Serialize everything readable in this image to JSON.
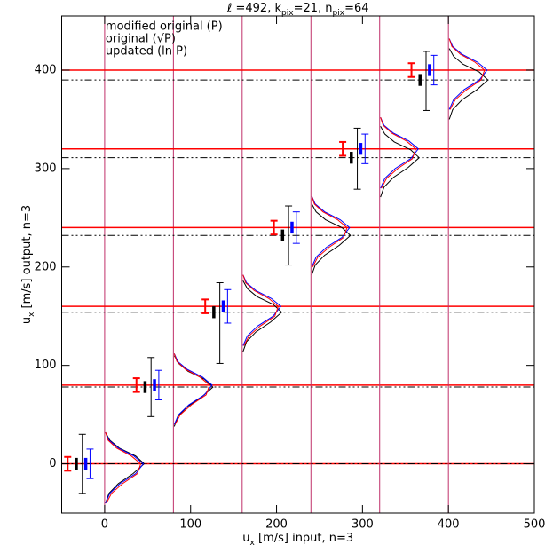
{
  "chart_data": {
    "type": "shift-test",
    "title": [
      {
        "text": "ℓ =492, k"
      },
      {
        "text": "pix",
        "sub": true
      },
      {
        "text": "=21, n"
      },
      {
        "text": "pix",
        "sub": true
      },
      {
        "text": "=64"
      }
    ],
    "x_label": [
      {
        "text": "u"
      },
      {
        "text": "x",
        "sub": true
      },
      {
        "text": " [m/s] input, n=3"
      }
    ],
    "y_label": [
      {
        "text": "u"
      },
      {
        "text": "x",
        "sub": true
      },
      {
        "text": " [m/s] output, n=3"
      }
    ],
    "legend": [
      {
        "name": "modified original (P)",
        "color": "#0000ff"
      },
      {
        "name": "original (√P)",
        "color": "#000000"
      },
      {
        "name": "updated (ln P)",
        "color": "#ff0000"
      }
    ],
    "xlim": [
      -50,
      500
    ],
    "ylim": [
      -50,
      455
    ],
    "xticks": [
      0,
      100,
      200,
      300,
      400,
      500
    ],
    "yticks": [
      0,
      100,
      200,
      300,
      400
    ],
    "inputs": [
      0,
      80,
      160,
      240,
      320,
      400
    ],
    "input_line_color": "#ff0000",
    "input_vline_color": "#c0306a",
    "black_means": [
      0,
      78,
      154,
      232,
      311,
      390
    ],
    "error_bars": [
      {
        "color": "#ff0000",
        "width": 2,
        "caps": true,
        "x": [
          -43,
          37,
          117,
          197,
          277,
          357
        ],
        "y": [
          0,
          80,
          160,
          240,
          320,
          400
        ],
        "err": [
          7,
          7,
          7,
          7,
          7,
          7
        ]
      },
      {
        "color": "#000000",
        "width": 3.5,
        "caps": false,
        "x": [
          -33,
          47,
          127,
          207,
          287,
          367
        ],
        "y": [
          0,
          78,
          154,
          232,
          311,
          390
        ],
        "err": [
          6,
          6,
          6,
          6,
          6,
          6
        ]
      },
      {
        "color": "#000000",
        "width": 1,
        "caps": true,
        "x": [
          -26,
          54,
          134,
          214,
          294,
          374
        ],
        "y": [
          0,
          78,
          143,
          232,
          310,
          389
        ],
        "err": [
          30,
          30,
          41,
          30,
          31,
          30
        ]
      },
      {
        "color": "#0000ff",
        "width": 3.5,
        "caps": false,
        "x": [
          -22,
          58,
          138,
          218,
          298,
          378
        ],
        "y": [
          0,
          80,
          160,
          240,
          320,
          400
        ],
        "err": [
          6,
          6,
          6,
          6,
          6,
          6
        ]
      },
      {
        "color": "#0000ff",
        "width": 1,
        "caps": true,
        "x": [
          -17,
          63,
          143,
          223,
          303,
          383
        ],
        "y": [
          0,
          80,
          160,
          240,
          320,
          400
        ],
        "err": [
          15,
          15,
          17,
          16,
          15,
          15
        ]
      }
    ],
    "histograms": [
      {
        "color": "#000000",
        "x": [
          1,
          5,
          16,
          33,
          46,
          36,
          17,
          6,
          1
        ],
        "y": [
          -40,
          -30,
          -20,
          -10,
          0,
          8,
          16,
          24,
          32
        ]
      },
      {
        "color": "#0000ff",
        "x": [
          1,
          6,
          18,
          36,
          45,
          34,
          16,
          5,
          1
        ],
        "y": [
          -40,
          -30,
          -20,
          -10,
          0,
          8,
          16,
          24,
          32
        ]
      },
      {
        "color": "#ff0000",
        "x": [
          2,
          8,
          21,
          38,
          42,
          31,
          14,
          4,
          1
        ],
        "y": [
          -40,
          -30,
          -20,
          -10,
          0,
          8,
          16,
          24,
          32
        ]
      },
      {
        "color": "#000000",
        "x": [
          81,
          85,
          96,
          113,
          126,
          116,
          97,
          86,
          81
        ],
        "y": [
          38,
          48,
          58,
          68,
          78,
          86,
          94,
          102,
          110
        ]
      },
      {
        "color": "#0000ff",
        "x": [
          81,
          86,
          98,
          116,
          125,
          114,
          96,
          85,
          81
        ],
        "y": [
          40,
          50,
          60,
          70,
          80,
          88,
          96,
          104,
          112
        ]
      },
      {
        "color": "#ff0000",
        "x": [
          82,
          88,
          101,
          118,
          122,
          111,
          94,
          84,
          81
        ],
        "y": [
          40,
          50,
          60,
          70,
          80,
          88,
          96,
          104,
          112
        ]
      },
      {
        "color": "#000000",
        "x": [
          161,
          165,
          176,
          193,
          206,
          196,
          177,
          166,
          161
        ],
        "y": [
          114,
          124,
          134,
          144,
          154,
          162,
          170,
          178,
          186
        ]
      },
      {
        "color": "#0000ff",
        "x": [
          161,
          166,
          178,
          196,
          205,
          194,
          176,
          165,
          161
        ],
        "y": [
          120,
          130,
          140,
          150,
          160,
          168,
          176,
          184,
          192
        ]
      },
      {
        "color": "#ff0000",
        "x": [
          162,
          168,
          181,
          198,
          202,
          191,
          174,
          164,
          161
        ],
        "y": [
          120,
          130,
          140,
          150,
          160,
          168,
          176,
          184,
          192
        ]
      },
      {
        "color": "#000000",
        "x": [
          241,
          245,
          256,
          273,
          286,
          276,
          257,
          246,
          241
        ],
        "y": [
          192,
          202,
          212,
          222,
          232,
          240,
          248,
          256,
          264
        ]
      },
      {
        "color": "#0000ff",
        "x": [
          241,
          246,
          258,
          276,
          285,
          274,
          256,
          245,
          241
        ],
        "y": [
          200,
          210,
          220,
          230,
          240,
          248,
          256,
          264,
          272
        ]
      },
      {
        "color": "#ff0000",
        "x": [
          242,
          248,
          261,
          278,
          282,
          271,
          254,
          244,
          241
        ],
        "y": [
          200,
          210,
          220,
          230,
          240,
          248,
          256,
          264,
          272
        ]
      },
      {
        "color": "#000000",
        "x": [
          321,
          325,
          336,
          353,
          366,
          356,
          337,
          326,
          321
        ],
        "y": [
          271,
          281,
          291,
          301,
          311,
          319,
          327,
          335,
          343
        ]
      },
      {
        "color": "#0000ff",
        "x": [
          321,
          326,
          338,
          356,
          365,
          354,
          336,
          325,
          321
        ],
        "y": [
          280,
          290,
          300,
          310,
          320,
          328,
          336,
          344,
          352
        ]
      },
      {
        "color": "#ff0000",
        "x": [
          322,
          328,
          341,
          358,
          362,
          351,
          334,
          324,
          321
        ],
        "y": [
          280,
          290,
          300,
          310,
          320,
          328,
          336,
          344,
          352
        ]
      },
      {
        "color": "#000000",
        "x": [
          401,
          405,
          416,
          433,
          446,
          436,
          417,
          406,
          401
        ],
        "y": [
          350,
          360,
          370,
          380,
          390,
          398,
          406,
          414,
          422
        ]
      },
      {
        "color": "#0000ff",
        "x": [
          401,
          406,
          418,
          436,
          445,
          434,
          416,
          405,
          401
        ],
        "y": [
          360,
          370,
          380,
          390,
          400,
          408,
          416,
          424,
          432
        ]
      },
      {
        "color": "#ff0000",
        "x": [
          402,
          408,
          421,
          438,
          442,
          431,
          414,
          404,
          401
        ],
        "y": [
          360,
          370,
          380,
          390,
          400,
          408,
          416,
          424,
          432
        ]
      }
    ]
  }
}
